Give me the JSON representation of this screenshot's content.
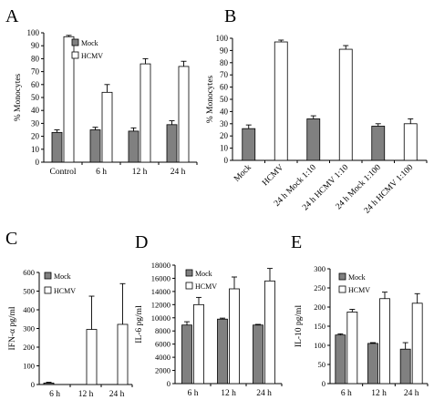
{
  "chart_data": [
    {
      "panel": "A",
      "type": "bar",
      "title": "",
      "ylabel": "% Monocytes",
      "xlabel": "",
      "ylim": [
        0,
        100
      ],
      "yticks": [
        0,
        10,
        20,
        30,
        40,
        50,
        60,
        70,
        80,
        90,
        100
      ],
      "ytick_labels": [
        "0",
        "10",
        "20",
        "30",
        "40",
        "50",
        "60",
        "70",
        "80",
        "90",
        "100"
      ],
      "categories": [
        "Control",
        "6 h",
        "12 h",
        "24 h"
      ],
      "legend": "top-left",
      "series": [
        {
          "name": "Mock",
          "color": "#808080",
          "values": [
            23,
            25,
            24,
            29
          ],
          "errors": [
            2,
            2,
            2.5,
            3
          ]
        },
        {
          "name": "HCMV",
          "color": "#ffffff",
          "values": [
            97,
            54,
            76,
            74
          ],
          "errors": [
            1,
            6,
            4,
            4
          ]
        }
      ]
    },
    {
      "panel": "B",
      "type": "bar",
      "title": "",
      "ylabel": "% Monocytes",
      "xlabel": "",
      "ylim": [
        0,
        100
      ],
      "yticks": [
        0,
        10,
        20,
        30,
        40,
        50,
        60,
        70,
        80,
        90,
        100
      ],
      "ytick_labels": [
        "0",
        "10",
        "20",
        "30",
        "40",
        "50",
        "60",
        "70",
        "80",
        "90",
        "100"
      ],
      "categories": [
        "Mock",
        "HCMV",
        "24 h Mock 1:10",
        "24 h HCMV 1:10",
        "24 h Mock 1:100",
        "24 h HCMV 1:100"
      ],
      "bar_colors": [
        "#808080",
        "#ffffff",
        "#808080",
        "#ffffff",
        "#808080",
        "#ffffff"
      ],
      "values": [
        26,
        97,
        34,
        91,
        28,
        30
      ],
      "errors": [
        3,
        1.5,
        2.5,
        3,
        2,
        4
      ]
    },
    {
      "panel": "C",
      "type": "bar",
      "title": "",
      "ylabel": "IFN-α  pg/ml",
      "xlabel": "",
      "ylim": [
        0,
        600
      ],
      "yticks": [
        0,
        100,
        200,
        300,
        400,
        500,
        600
      ],
      "ytick_labels": [
        "0",
        "100",
        "200",
        "300",
        "400",
        "500",
        "600"
      ],
      "categories": [
        "6 h",
        "12 h",
        "24 h"
      ],
      "legend": "top-left",
      "series": [
        {
          "name": "Mock",
          "color": "#808080",
          "values": [
            8,
            0,
            0
          ],
          "errors": [
            4,
            0,
            0
          ]
        },
        {
          "name": "HCMV",
          "color": "#ffffff",
          "values": [
            0,
            295,
            322
          ],
          "errors": [
            0,
            178,
            218
          ]
        }
      ]
    },
    {
      "panel": "D",
      "type": "bar",
      "title": "",
      "ylabel": "IL-6 pg/ml",
      "xlabel": "",
      "ylim": [
        0,
        18000
      ],
      "yticks": [
        0,
        2000,
        4000,
        6000,
        8000,
        10000,
        12000,
        14000,
        16000,
        18000
      ],
      "ytick_labels": [
        "0",
        "2000",
        "4000",
        "6000",
        "8000",
        "10000",
        "12000",
        "14000",
        "16000",
        "18000"
      ],
      "categories": [
        "6 h",
        "12 h",
        "24 h"
      ],
      "legend": "top-left",
      "series": [
        {
          "name": "Mock",
          "color": "#808080",
          "values": [
            8900,
            9800,
            8900
          ],
          "errors": [
            500,
            150,
            100
          ]
        },
        {
          "name": "HCMV",
          "color": "#ffffff",
          "values": [
            12000,
            14400,
            15600
          ],
          "errors": [
            1100,
            1800,
            1900
          ]
        }
      ]
    },
    {
      "panel": "E",
      "type": "bar",
      "title": "",
      "ylabel": "IL-10 pg/ml",
      "xlabel": "",
      "ylim": [
        0,
        300
      ],
      "yticks": [
        0,
        50,
        100,
        150,
        200,
        250,
        300
      ],
      "ytick_labels": [
        "0",
        "50",
        "100",
        "150",
        "200",
        "250",
        "300"
      ],
      "categories": [
        "6 h",
        "12 h",
        "24 h"
      ],
      "legend": "top-left",
      "series": [
        {
          "name": "Mock",
          "color": "#808080",
          "values": [
            127,
            105,
            90
          ],
          "errors": [
            3,
            2,
            17
          ]
        },
        {
          "name": "HCMV",
          "color": "#ffffff",
          "values": [
            187,
            222,
            210
          ],
          "errors": [
            7,
            17,
            25
          ]
        }
      ]
    }
  ]
}
